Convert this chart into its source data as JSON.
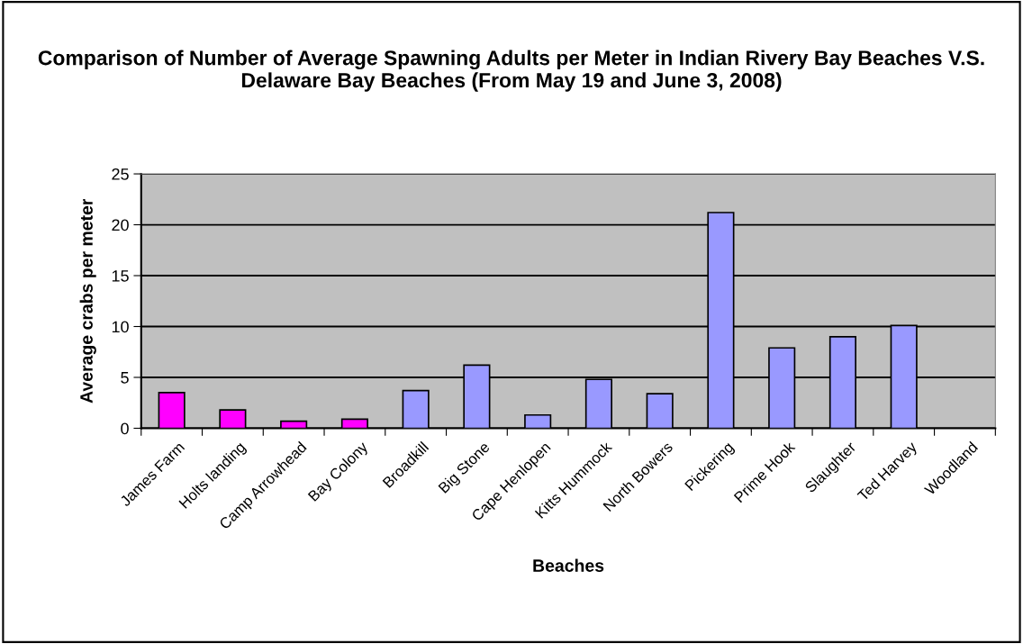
{
  "chart_data": {
    "type": "bar",
    "title": "Comparison of Number of Average Spawning Adults per Meter in Indian Rivery Bay Beaches V.S. Delaware Bay Beaches (From May 19 and June 3, 2008)",
    "xlabel": "Beaches",
    "ylabel": "Average crabs per meter",
    "categories": [
      "James Farm",
      "Holts landing",
      "Camp Arrowhead",
      "Bay Colony",
      "Broadkill",
      "Big Stone",
      "Cape Henlopen",
      "Kitts Hummock",
      "North Bowers",
      "Pickering",
      "Prime Hook",
      "Slaughter",
      "Ted Harvey",
      "Woodland"
    ],
    "values": [
      3.5,
      1.8,
      0.7,
      0.9,
      3.7,
      6.2,
      1.3,
      4.8,
      3.4,
      21.2,
      7.9,
      9.0,
      10.1,
      null
    ],
    "colors": [
      "#ff00ff",
      "#ff00ff",
      "#ff00ff",
      "#ff00ff",
      "#9999ff",
      "#9999ff",
      "#9999ff",
      "#9999ff",
      "#9999ff",
      "#9999ff",
      "#9999ff",
      "#9999ff",
      "#9999ff",
      "#9999ff"
    ],
    "ylim": [
      0,
      25
    ],
    "yticks": [
      0,
      5,
      10,
      15,
      20,
      25
    ],
    "grid": "y",
    "legend": false
  }
}
